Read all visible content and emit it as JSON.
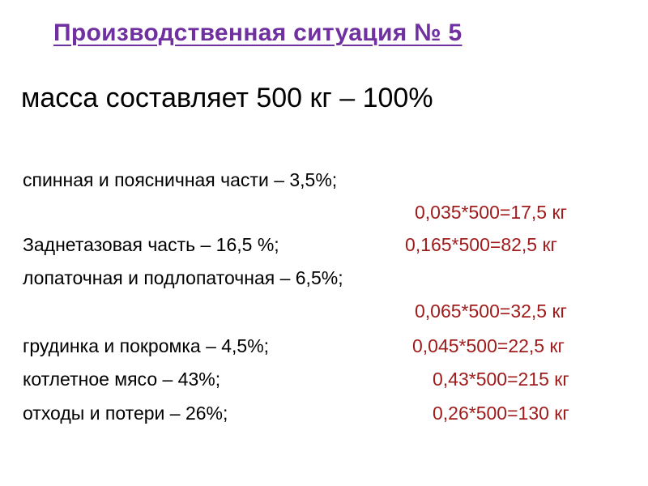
{
  "title": "Производственная ситуация № 5",
  "mass_line": "масса составляет 500 кг – 100%",
  "items": [
    {
      "label": "спинная и поясничная части  – 3,5%;",
      "calc": "0,035*500=17,5 кг"
    },
    {
      "label": "Заднетазовая часть  – 16,5 %;",
      "calc": "0,165*500=82,5 кг"
    },
    {
      "label": "лопаточная и подлопаточная  – 6,5%;",
      "calc": "0,065*500=32,5 кг"
    },
    {
      "label": "грудинка и покромка  – 4,5%;",
      "calc": "0,045*500=22,5 кг"
    },
    {
      "label": "котлетное мясо  –  43%;",
      "calc": "0,43*500=215 кг"
    },
    {
      "label": "отходы и потери  – 26%;",
      "calc": "0,26*500=130 кг"
    }
  ],
  "colors": {
    "title": "#7030a0",
    "calc": "#a01c1c",
    "text": "#000000"
  }
}
